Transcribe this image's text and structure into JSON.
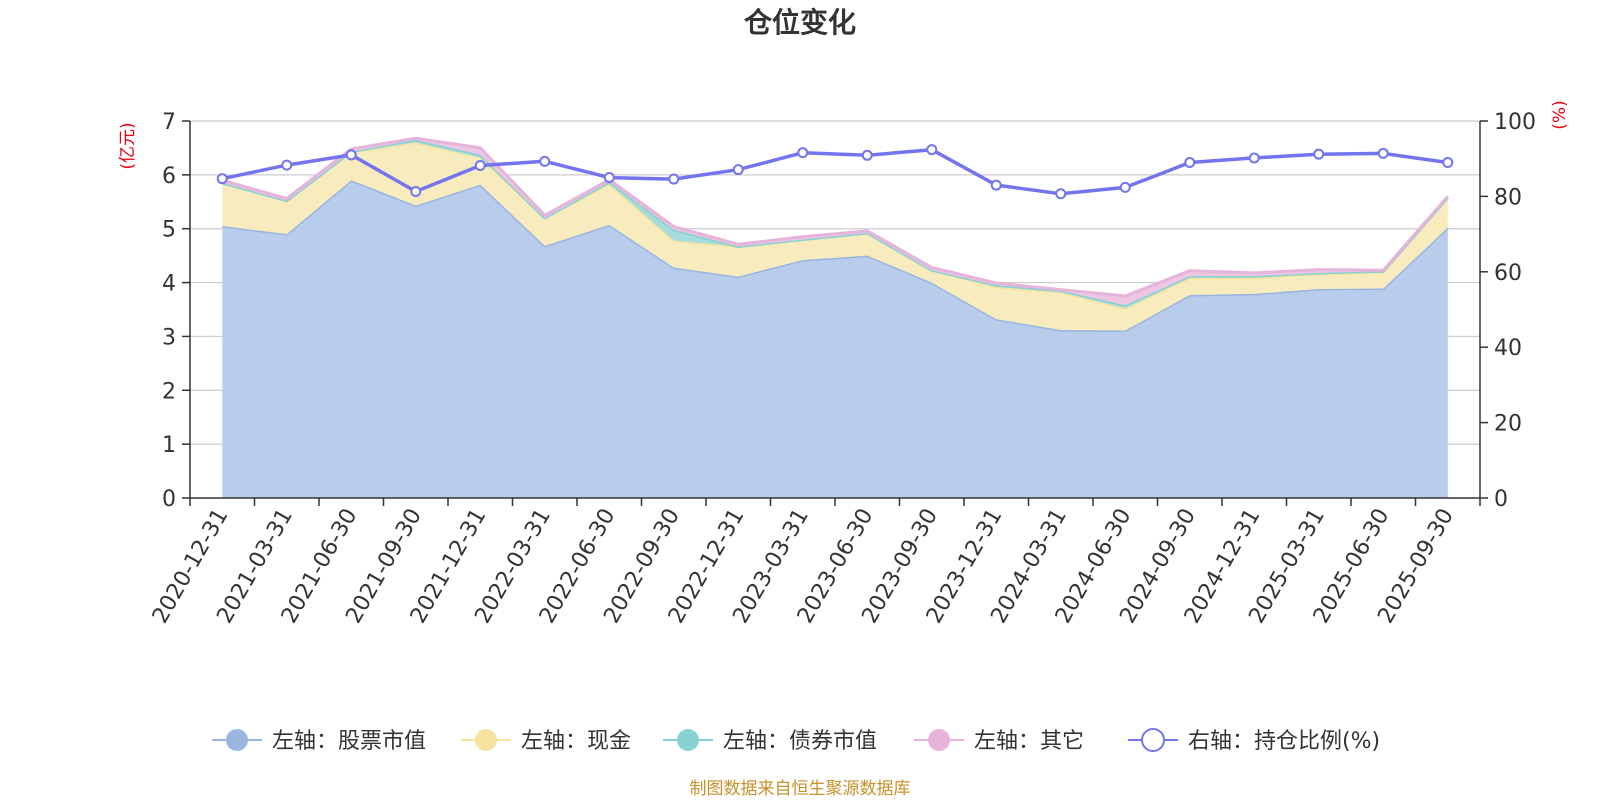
{
  "chart_data": {
    "type": "area",
    "title": "仓位变化",
    "left_axis_unit": "(亿元)",
    "right_axis_unit": "(%)",
    "left_ylim": [
      0,
      7
    ],
    "left_ticks": [
      "0",
      "1",
      "2",
      "3",
      "4",
      "5",
      "6",
      "7"
    ],
    "right_ylim": [
      0,
      100
    ],
    "right_ticks": [
      "0",
      "20",
      "40",
      "60",
      "80",
      "100"
    ],
    "categories": [
      "2020-12-31",
      "2021-03-31",
      "2021-06-30",
      "2021-09-30",
      "2021-12-31",
      "2022-03-31",
      "2022-06-30",
      "2022-09-30",
      "2022-12-31",
      "2023-03-31",
      "2023-06-30",
      "2023-09-30",
      "2023-12-31",
      "2024-03-31",
      "2024-06-30",
      "2024-09-30",
      "2024-12-31",
      "2025-03-31",
      "2025-06-30",
      "2025-09-30"
    ],
    "stack_series": [
      {
        "name": "左轴：股票市值",
        "color": "#9ab5e0",
        "fill": "#b8cceb",
        "values": [
          5.05,
          4.9,
          5.9,
          5.43,
          5.82,
          4.68,
          5.07,
          4.28,
          4.11,
          4.42,
          4.5,
          4.0,
          3.32,
          3.12,
          3.11,
          3.77,
          3.79,
          3.88,
          3.89,
          5.02
        ]
      },
      {
        "name": "左轴：现金",
        "color": "#f6e3a0",
        "fill": "#f8ecbf",
        "values": [
          0.8,
          0.62,
          0.53,
          1.17,
          0.5,
          0.52,
          0.76,
          0.5,
          0.56,
          0.38,
          0.42,
          0.23,
          0.6,
          0.7,
          0.41,
          0.32,
          0.3,
          0.28,
          0.3,
          0.56
        ]
      },
      {
        "name": "左轴：债券市值",
        "color": "#88d1d1",
        "fill": "#a6dcdc",
        "values": [
          0.0,
          0.0,
          0.0,
          0.05,
          0.05,
          0.0,
          0.04,
          0.2,
          0.0,
          0.0,
          0.0,
          0.0,
          0.03,
          0.03,
          0.06,
          0.03,
          0.03,
          0.02,
          0.02,
          0.0
        ]
      },
      {
        "name": "左轴：其它",
        "color": "#e6b3da",
        "fill": "#ecc6e3",
        "values": [
          0.05,
          0.04,
          0.05,
          0.03,
          0.13,
          0.05,
          0.04,
          0.06,
          0.04,
          0.05,
          0.04,
          0.05,
          0.04,
          0.02,
          0.17,
          0.1,
          0.06,
          0.06,
          0.02,
          0.02
        ]
      }
    ],
    "line_series": {
      "name": "右轴：持仓比例(%)",
      "color": "#7474ee",
      "values": [
        84.7,
        88.3,
        91.0,
        81.3,
        88.2,
        89.3,
        85.0,
        84.6,
        87.1,
        91.6,
        90.9,
        92.4,
        83.0,
        80.7,
        82.4,
        89.0,
        90.2,
        91.2,
        91.4,
        89.0
      ]
    },
    "source": "制图数据来自恒生聚源数据库"
  }
}
